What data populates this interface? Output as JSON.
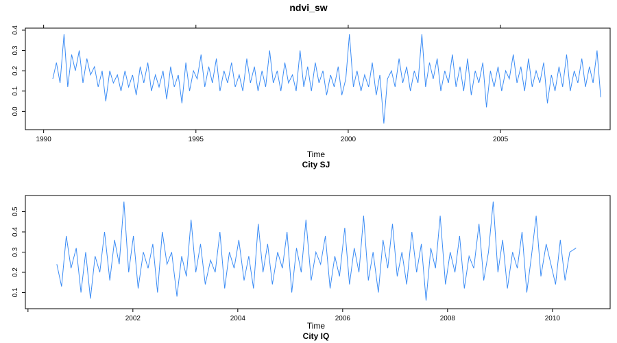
{
  "figure": {
    "title": "ndvi_sw",
    "line_color": "#3b8cf5"
  },
  "chart_data": [
    {
      "type": "line",
      "title": "City SJ",
      "xlabel": "Time",
      "ylabel": "",
      "xlim": [
        1989.4,
        2008.6
      ],
      "ylim": [
        -0.09,
        0.41
      ],
      "x_ticks": [
        1990,
        1995,
        2000,
        2005
      ],
      "x_tick_labels": [
        "1990",
        "1995",
        "2000",
        "2005"
      ],
      "y_ticks": [
        0.0,
        0.1,
        0.2,
        0.3,
        0.4
      ],
      "y_tick_labels": [
        "0.0",
        "0.1",
        "0.2",
        "0.3",
        "0.4"
      ],
      "series": [
        {
          "x": [
            1990.3,
            1990.42,
            1990.54,
            1990.67,
            1990.79,
            1990.92,
            1991.04,
            1991.17,
            1991.29,
            1991.42,
            1991.54,
            1991.67,
            1991.79,
            1991.92,
            1992.04,
            1992.17,
            1992.29,
            1992.42,
            1992.54,
            1992.67,
            1992.79,
            1992.92,
            1993.04,
            1993.17,
            1993.29,
            1993.42,
            1993.54,
            1993.67,
            1993.79,
            1993.92,
            1994.04,
            1994.17,
            1994.29,
            1994.42,
            1994.54,
            1994.67,
            1994.79,
            1994.92,
            1995.04,
            1995.17,
            1995.29,
            1995.42,
            1995.54,
            1995.67,
            1995.79,
            1995.92,
            1996.04,
            1996.17,
            1996.29,
            1996.42,
            1996.54,
            1996.67,
            1996.79,
            1996.92,
            1997.04,
            1997.17,
            1997.29,
            1997.42,
            1997.54,
            1997.67,
            1997.79,
            1997.92,
            1998.04,
            1998.17,
            1998.29,
            1998.42,
            1998.54,
            1998.67,
            1998.79,
            1998.92,
            1999.04,
            1999.17,
            1999.29,
            1999.42,
            1999.54,
            1999.67,
            1999.79,
            1999.92,
            2000.04,
            2000.17,
            2000.29,
            2000.42,
            2000.54,
            2000.67,
            2000.79,
            2000.92,
            2001.04,
            2001.17,
            2001.29,
            2001.42,
            2001.54,
            2001.67,
            2001.79,
            2001.92,
            2002.04,
            2002.17,
            2002.29,
            2002.42,
            2002.54,
            2002.67,
            2002.79,
            2002.92,
            2003.04,
            2003.17,
            2003.29,
            2003.42,
            2003.54,
            2003.67,
            2003.79,
            2003.92,
            2004.04,
            2004.17,
            2004.29,
            2004.42,
            2004.54,
            2004.67,
            2004.79,
            2004.92,
            2005.04,
            2005.17,
            2005.29,
            2005.42,
            2005.54,
            2005.67,
            2005.79,
            2005.92,
            2006.04,
            2006.17,
            2006.29,
            2006.42,
            2006.54,
            2006.67,
            2006.79,
            2006.92,
            2007.04,
            2007.17,
            2007.29,
            2007.42,
            2007.54,
            2007.67,
            2007.79,
            2007.92,
            2008.04,
            2008.17,
            2008.29
          ],
          "values": [
            0.16,
            0.24,
            0.14,
            0.38,
            0.12,
            0.28,
            0.2,
            0.3,
            0.14,
            0.26,
            0.18,
            0.22,
            0.12,
            0.2,
            0.05,
            0.2,
            0.14,
            0.18,
            0.1,
            0.2,
            0.12,
            0.18,
            0.08,
            0.22,
            0.14,
            0.24,
            0.1,
            0.18,
            0.12,
            0.2,
            0.06,
            0.22,
            0.12,
            0.18,
            0.04,
            0.24,
            0.1,
            0.2,
            0.16,
            0.28,
            0.12,
            0.22,
            0.14,
            0.26,
            0.1,
            0.2,
            0.14,
            0.24,
            0.12,
            0.18,
            0.1,
            0.26,
            0.14,
            0.22,
            0.1,
            0.2,
            0.12,
            0.3,
            0.14,
            0.2,
            0.1,
            0.24,
            0.14,
            0.18,
            0.1,
            0.3,
            0.12,
            0.22,
            0.1,
            0.24,
            0.14,
            0.2,
            0.08,
            0.18,
            0.12,
            0.22,
            0.08,
            0.16,
            0.38,
            0.12,
            0.2,
            0.1,
            0.18,
            0.12,
            0.24,
            0.08,
            0.18,
            -0.06,
            0.16,
            0.2,
            0.12,
            0.26,
            0.14,
            0.22,
            0.1,
            0.2,
            0.14,
            0.38,
            0.12,
            0.24,
            0.16,
            0.26,
            0.1,
            0.2,
            0.14,
            0.28,
            0.12,
            0.22,
            0.1,
            0.26,
            0.08,
            0.2,
            0.14,
            0.24,
            0.02,
            0.2,
            0.12,
            0.22,
            0.1,
            0.2,
            0.16,
            0.28,
            0.14,
            0.22,
            0.1,
            0.26,
            0.12,
            0.2,
            0.14,
            0.24,
            0.04,
            0.18,
            0.1,
            0.22,
            0.12,
            0.28,
            0.1,
            0.2,
            0.14,
            0.26,
            0.12,
            0.22,
            0.14,
            0.3,
            0.07
          ]
        }
      ]
    },
    {
      "type": "line",
      "title": "City IQ",
      "xlabel": "Time",
      "ylabel": "",
      "xlim": [
        1999.95,
        2011.1
      ],
      "ylim": [
        0.02,
        0.58
      ],
      "x_ticks": [
        2000,
        2002,
        2004,
        2006,
        2008,
        2010
      ],
      "x_tick_labels": [
        "",
        "2002",
        "2004",
        "2006",
        "2008",
        "2010"
      ],
      "y_ticks": [
        0.1,
        0.2,
        0.3,
        0.4,
        0.5
      ],
      "y_tick_labels": [
        "0.1",
        "0.2",
        "0.3",
        "0.4",
        "0.5"
      ],
      "series": [
        {
          "x": [
            2000.55,
            2000.64,
            2000.73,
            2000.82,
            2000.92,
            2001.01,
            2001.1,
            2001.19,
            2001.28,
            2001.37,
            2001.46,
            2001.56,
            2001.65,
            2001.74,
            2001.83,
            2001.92,
            2002.01,
            2002.1,
            2002.2,
            2002.29,
            2002.38,
            2002.47,
            2002.56,
            2002.65,
            2002.74,
            2002.84,
            2002.93,
            2003.02,
            2003.11,
            2003.2,
            2003.29,
            2003.38,
            2003.48,
            2003.57,
            2003.66,
            2003.75,
            2003.84,
            2003.93,
            2004.02,
            2004.12,
            2004.21,
            2004.3,
            2004.39,
            2004.48,
            2004.57,
            2004.66,
            2004.76,
            2004.85,
            2004.94,
            2005.03,
            2005.12,
            2005.21,
            2005.3,
            2005.4,
            2005.49,
            2005.58,
            2005.67,
            2005.76,
            2005.85,
            2005.94,
            2006.04,
            2006.13,
            2006.22,
            2006.31,
            2006.4,
            2006.49,
            2006.58,
            2006.68,
            2006.77,
            2006.86,
            2006.95,
            2007.04,
            2007.13,
            2007.22,
            2007.32,
            2007.41,
            2007.5,
            2007.59,
            2007.68,
            2007.77,
            2007.86,
            2007.96,
            2008.05,
            2008.14,
            2008.23,
            2008.32,
            2008.41,
            2008.5,
            2008.6,
            2008.69,
            2008.78,
            2008.87,
            2008.96,
            2009.05,
            2009.14,
            2009.24,
            2009.33,
            2009.42,
            2009.51,
            2009.6,
            2009.69,
            2009.78,
            2009.88,
            2009.97,
            2010.06,
            2010.15,
            2010.24,
            2010.33,
            2010.45
          ],
          "values": [
            0.24,
            0.13,
            0.38,
            0.22,
            0.32,
            0.1,
            0.3,
            0.07,
            0.28,
            0.2,
            0.4,
            0.16,
            0.36,
            0.24,
            0.55,
            0.2,
            0.38,
            0.12,
            0.3,
            0.22,
            0.34,
            0.1,
            0.4,
            0.24,
            0.3,
            0.08,
            0.28,
            0.18,
            0.46,
            0.2,
            0.34,
            0.14,
            0.26,
            0.2,
            0.4,
            0.12,
            0.3,
            0.22,
            0.36,
            0.16,
            0.28,
            0.12,
            0.44,
            0.2,
            0.34,
            0.14,
            0.3,
            0.22,
            0.4,
            0.1,
            0.32,
            0.2,
            0.46,
            0.16,
            0.3,
            0.24,
            0.38,
            0.12,
            0.28,
            0.18,
            0.42,
            0.14,
            0.32,
            0.2,
            0.48,
            0.16,
            0.3,
            0.1,
            0.36,
            0.22,
            0.44,
            0.18,
            0.3,
            0.14,
            0.4,
            0.2,
            0.34,
            0.06,
            0.32,
            0.22,
            0.48,
            0.14,
            0.3,
            0.2,
            0.38,
            0.12,
            0.28,
            0.22,
            0.44,
            0.16,
            0.3,
            0.55,
            0.2,
            0.36,
            0.12,
            0.3,
            0.22,
            0.4,
            0.1,
            0.28,
            0.48,
            0.18,
            0.34,
            0.24,
            0.14,
            0.36,
            0.16,
            0.3,
            0.32
          ]
        }
      ]
    }
  ]
}
